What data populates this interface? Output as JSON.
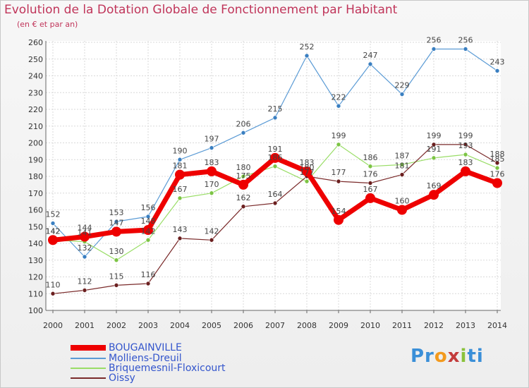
{
  "title": "Evolution de la Dotation Globale de Fonctionnement par Habitant",
  "subtitle": "(en € et par an)",
  "logo": {
    "parts": [
      "Pr",
      "o",
      "x",
      "i",
      "ti"
    ],
    "colors": [
      "#3a8fd8",
      "#f39a1e",
      "#c33c3c",
      "#8ac23c",
      "#3a8fd8"
    ]
  },
  "chart_data": {
    "type": "line",
    "title": "Evolution de la Dotation Globale de Fonctionnement par Habitant",
    "subtitle": "(en € et par an)",
    "xlabel": "",
    "ylabel": "",
    "ylim": [
      100,
      260
    ],
    "yticks": [
      100,
      110,
      120,
      130,
      140,
      150,
      160,
      170,
      180,
      190,
      200,
      210,
      220,
      230,
      240,
      250,
      260
    ],
    "grid": true,
    "legend_position": "bottom-left",
    "x": [
      "2000",
      "2001",
      "2002",
      "2003",
      "2004",
      "2005",
      "2006",
      "2007",
      "2008",
      "2009",
      "2010",
      "2011",
      "2012",
      "2013",
      "2014"
    ],
    "series": [
      {
        "name": "Molliens-Dreuil",
        "color": "#5b9bd5",
        "marker": "#3a7fc1",
        "width": 1.2,
        "values": [
          152,
          132,
          153,
          156,
          190,
          197,
          206,
          215,
          252,
          222,
          247,
          229,
          256,
          256,
          243
        ],
        "labels": [
          "152",
          "132",
          "153",
          "156",
          "190",
          "197",
          "206",
          "215",
          "252",
          "222",
          "247",
          "229",
          "256",
          "256",
          "243"
        ]
      },
      {
        "name": "Briquemesnil-Floxicourt",
        "color": "#99dd66",
        "marker": "#7cc444",
        "width": 1.2,
        "values": [
          142,
          141,
          130,
          142,
          167,
          170,
          180,
          186,
          177,
          199,
          186,
          187,
          191,
          193,
          185
        ],
        "labels": [
          "142",
          "141",
          "130",
          "142",
          "167",
          "170",
          "180",
          "186",
          "177",
          "199",
          "186",
          "187",
          "191",
          "193",
          "185"
        ]
      },
      {
        "name": "Oissy",
        "color": "#7a2a2a",
        "marker": "#6b1f1f",
        "width": 1.2,
        "values": [
          110,
          112,
          115,
          116,
          143,
          142,
          162,
          164,
          180,
          177,
          176,
          181,
          199,
          199,
          188
        ],
        "labels": [
          "110",
          "112",
          "115",
          "116",
          "143",
          "142",
          "162",
          "164",
          "180",
          "177",
          "176",
          "181",
          "199",
          "199",
          "188"
        ]
      },
      {
        "name": "BOUGAINVILLE",
        "color": "#ee0000",
        "marker": "#ee0000",
        "width": 7,
        "values": [
          142,
          144,
          147,
          148,
          181,
          183,
          175,
          191,
          183,
          154,
          167,
          160,
          169,
          183,
          176
        ],
        "labels": [
          "142",
          "144",
          "147",
          "148",
          "181",
          "183",
          "175",
          "191",
          "183",
          "154",
          "167",
          "160",
          "169",
          "183",
          "176"
        ]
      }
    ],
    "legend": [
      "BOUGAINVILLE",
      "Molliens-Dreuil",
      "Briquemesnil-Floxicourt",
      "Oissy"
    ]
  }
}
